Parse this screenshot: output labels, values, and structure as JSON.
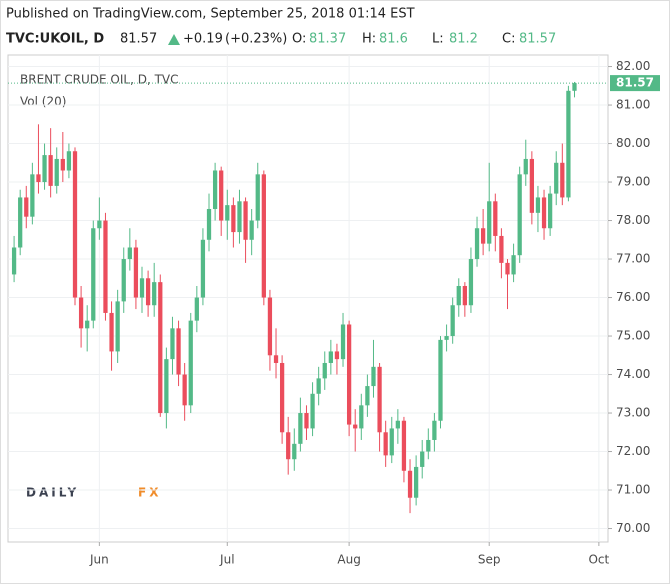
{
  "header": {
    "published": "Published on TradingView.com, September 25, 2018 01:14 EST",
    "symbol": "TVC:UKOIL, D",
    "change": "+0.19",
    "change_pct": "(+0.23%)",
    "ohlc_labels": [
      "O:",
      "H:",
      "L:",
      "C:"
    ]
  },
  "watermark": [
    "DAILY",
    "FX"
  ],
  "chart_data": {
    "type": "candlestick",
    "title": "BRENT CRUDE OIL, D, TVC",
    "subtitle": "Vol (20)",
    "up_color": "#53b987",
    "down_color": "#eb4d5c",
    "open": [
      76.6,
      77.3,
      78.6,
      78.1,
      79.2,
      79.0,
      79.7,
      78.9,
      79.6,
      79.3,
      79.8,
      76.0,
      75.2,
      75.4,
      77.8,
      78.0,
      75.6,
      74.6,
      75.9,
      77.0,
      77.3,
      76.0,
      76.5,
      75.8,
      76.4,
      73.0,
      74.4,
      75.2,
      74.0,
      73.2,
      75.4,
      76.0,
      77.5,
      78.3,
      79.3,
      78.0,
      78.4,
      77.7,
      78.5,
      77.5,
      78.0,
      79.2,
      76.0,
      74.5,
      74.3,
      72.5,
      71.8,
      72.2,
      73.0,
      72.6,
      73.5,
      73.9,
      74.3,
      74.6,
      74.4,
      75.3,
      72.7,
      72.6,
      73.2,
      73.7,
      74.2,
      72.5,
      71.9,
      72.6,
      72.8,
      71.5,
      70.8,
      71.6,
      72.0,
      72.3,
      72.8,
      74.9,
      75.0,
      75.8,
      76.3,
      75.8,
      77.0,
      77.8,
      77.4,
      78.5,
      77.6,
      76.9,
      76.6,
      77.1,
      79.2,
      79.6,
      78.2,
      78.6,
      77.8,
      78.7,
      79.5,
      78.6,
      81.37
    ],
    "high": [
      77.6,
      78.8,
      78.9,
      79.5,
      80.5,
      80.0,
      80.4,
      79.9,
      80.3,
      80.0,
      79.9,
      76.3,
      75.8,
      78.0,
      78.6,
      78.2,
      75.9,
      76.2,
      77.3,
      77.8,
      77.5,
      76.8,
      76.7,
      76.9,
      76.6,
      74.7,
      75.5,
      75.4,
      74.3,
      75.6,
      76.3,
      77.8,
      78.7,
      79.5,
      79.4,
      78.8,
      78.6,
      78.8,
      78.6,
      78.3,
      79.5,
      79.3,
      76.2,
      75.2,
      74.5,
      72.9,
      72.6,
      73.4,
      73.2,
      73.8,
      74.2,
      74.6,
      74.9,
      74.8,
      75.6,
      75.4,
      73.1,
      73.5,
      74.0,
      74.9,
      74.3,
      72.8,
      72.9,
      73.1,
      72.9,
      71.8,
      71.9,
      72.3,
      72.6,
      73.0,
      75.0,
      75.3,
      76.0,
      76.5,
      76.4,
      77.3,
      78.1,
      78.3,
      79.5,
      78.7,
      77.8,
      77.0,
      77.4,
      79.4,
      80.1,
      79.8,
      78.9,
      78.8,
      78.9,
      79.8,
      80.0,
      81.5,
      81.6
    ],
    "low": [
      76.4,
      77.1,
      77.8,
      77.9,
      78.7,
      78.8,
      78.6,
      78.7,
      79.0,
      79.1,
      75.8,
      74.7,
      74.6,
      75.2,
      77.5,
      75.4,
      74.1,
      74.3,
      75.6,
      76.7,
      75.7,
      75.6,
      75.5,
      75.5,
      72.9,
      72.6,
      74.0,
      73.7,
      72.8,
      73.0,
      75.1,
      75.8,
      77.2,
      78.0,
      77.6,
      77.5,
      77.3,
      77.4,
      76.9,
      77.1,
      77.8,
      75.8,
      74.1,
      73.9,
      72.2,
      71.4,
      71.5,
      72.0,
      72.3,
      72.4,
      73.2,
      73.6,
      74.0,
      74.0,
      74.2,
      72.4,
      72.0,
      72.3,
      72.9,
      73.4,
      72.0,
      71.6,
      71.7,
      72.2,
      71.2,
      70.4,
      70.6,
      71.3,
      71.8,
      72.0,
      72.6,
      74.6,
      74.8,
      75.5,
      75.5,
      75.6,
      76.8,
      77.1,
      77.2,
      77.2,
      76.5,
      75.7,
      76.4,
      76.9,
      78.9,
      77.9,
      77.7,
      77.5,
      77.6,
      78.4,
      78.4,
      78.5,
      81.2
    ],
    "close": [
      77.3,
      78.6,
      78.1,
      79.2,
      79.0,
      79.7,
      78.9,
      79.6,
      79.3,
      79.8,
      76.0,
      75.2,
      75.4,
      77.8,
      78.0,
      75.6,
      74.6,
      75.9,
      77.0,
      77.3,
      76.0,
      76.5,
      75.8,
      76.4,
      73.0,
      74.4,
      75.2,
      74.0,
      73.2,
      75.4,
      76.0,
      77.5,
      78.3,
      79.3,
      78.0,
      78.4,
      77.7,
      78.5,
      77.5,
      78.0,
      79.2,
      76.0,
      74.5,
      74.3,
      72.5,
      71.8,
      72.2,
      73.0,
      72.6,
      73.5,
      73.9,
      74.3,
      74.6,
      74.4,
      75.3,
      72.7,
      72.6,
      73.2,
      73.7,
      74.2,
      72.5,
      71.9,
      72.6,
      72.8,
      71.5,
      70.8,
      71.6,
      72.0,
      72.3,
      72.8,
      74.9,
      75.0,
      75.8,
      76.3,
      75.8,
      77.0,
      77.8,
      77.4,
      78.5,
      77.6,
      76.9,
      76.6,
      77.1,
      79.2,
      79.6,
      78.2,
      78.6,
      77.8,
      78.7,
      79.5,
      78.6,
      81.37,
      81.57
    ],
    "xlim": [
      -1,
      97.5
    ],
    "xticks": [
      {
        "value": 14,
        "label": "Jun"
      },
      {
        "value": 35,
        "label": "Jul"
      },
      {
        "value": 55,
        "label": "Aug"
      },
      {
        "value": 78,
        "label": "Sep"
      },
      {
        "value": 96,
        "label": "Oct"
      }
    ],
    "ylim": [
      69.65,
      82.3
    ],
    "yticks": [
      {
        "value": 70,
        "label": "70.00"
      },
      {
        "value": 71,
        "label": "71.00"
      },
      {
        "value": 72,
        "label": "72.00"
      },
      {
        "value": 73,
        "label": "73.00"
      },
      {
        "value": 74,
        "label": "74.00"
      },
      {
        "value": 75,
        "label": "75.00"
      },
      {
        "value": 76,
        "label": "76.00"
      },
      {
        "value": 77,
        "label": "77.00"
      },
      {
        "value": 78,
        "label": "78.00"
      },
      {
        "value": 79,
        "label": "79.00"
      },
      {
        "value": 80,
        "label": "80.00"
      },
      {
        "value": 81,
        "label": "81.00"
      },
      {
        "value": 82,
        "label": "82.00"
      }
    ],
    "grid": true
  }
}
